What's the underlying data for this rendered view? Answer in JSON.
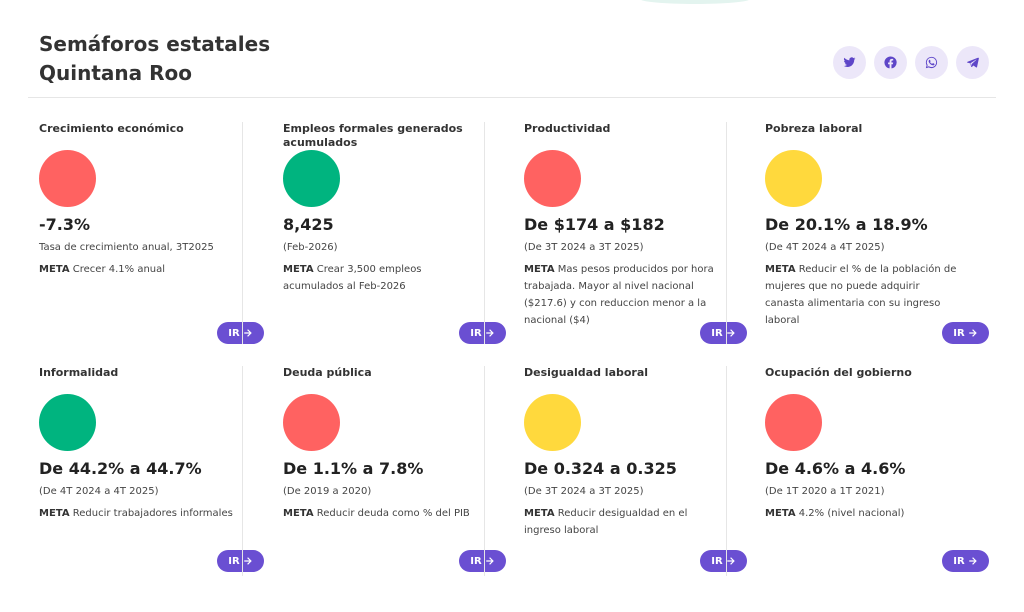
{
  "header": {
    "title_line1": "Semáforos estatales",
    "title_line2": "Quintana Roo"
  },
  "share": [
    {
      "icon": "twitter-icon"
    },
    {
      "icon": "facebook-icon"
    },
    {
      "icon": "whatsapp-icon"
    },
    {
      "icon": "telegram-icon"
    }
  ],
  "colors": {
    "red": "#ff6261",
    "green": "#00b47f",
    "yellow": "#ffd93d",
    "button": "#6a4fd2",
    "share_bg": "#ece7f9"
  },
  "cards": [
    {
      "title": "Crecimiento económico",
      "status": "red",
      "value": "-7.3%",
      "desc": "Tasa de crecimiento anual, 3T2025",
      "meta_label": "META",
      "meta_text": "Crecer 4.1% anual",
      "button": "IR"
    },
    {
      "title": "Empleos formales generados acumulados",
      "status": "green",
      "value": "8,425",
      "desc": "(Feb-2026)",
      "meta_label": "META",
      "meta_text": "Crear 3,500 empleos acumulados al Feb-2026",
      "button": "IR"
    },
    {
      "title": "Productividad",
      "status": "red",
      "value": "De $174 a $182",
      "desc": "(De 3T 2024 a 3T 2025)",
      "meta_label": "META",
      "meta_text": "Mas pesos producidos por hora trabajada. Mayor al nivel nacional ($217.6) y con reduccion menor a la nacional ($4)",
      "button": "IR"
    },
    {
      "title": "Pobreza laboral",
      "status": "yellow",
      "value": "De 20.1% a 18.9%",
      "desc": "(De 4T 2024 a 4T 2025)",
      "meta_label": "META",
      "meta_text": "Reducir el % de la población de mujeres que no puede adquirir canasta alimentaria con su ingreso laboral",
      "button": "IR"
    },
    {
      "title": "Informalidad",
      "status": "green",
      "value": "De 44.2% a 44.7%",
      "desc": "(De 4T 2024 a 4T 2025)",
      "meta_label": "META",
      "meta_text": "Reducir trabajadores informales",
      "button": "IR"
    },
    {
      "title": "Deuda pública",
      "status": "red",
      "value": "De 1.1% a 7.8%",
      "desc": "(De 2019 a 2020)",
      "meta_label": "META",
      "meta_text": "Reducir deuda como % del PIB",
      "button": "IR"
    },
    {
      "title": "Desigualdad laboral",
      "status": "yellow",
      "value": "De 0.324 a 0.325",
      "desc": "(De 3T 2024 a 3T 2025)",
      "meta_label": "META",
      "meta_text": "Reducir desigualdad en el ingreso laboral",
      "button": "IR"
    },
    {
      "title": "Ocupación del gobierno",
      "status": "red",
      "value": "De 4.6% a 4.6%",
      "desc": "(De 1T 2020 a 1T 2021)",
      "meta_label": "META",
      "meta_text": "4.2% (nivel nacional)",
      "button": "IR"
    }
  ]
}
